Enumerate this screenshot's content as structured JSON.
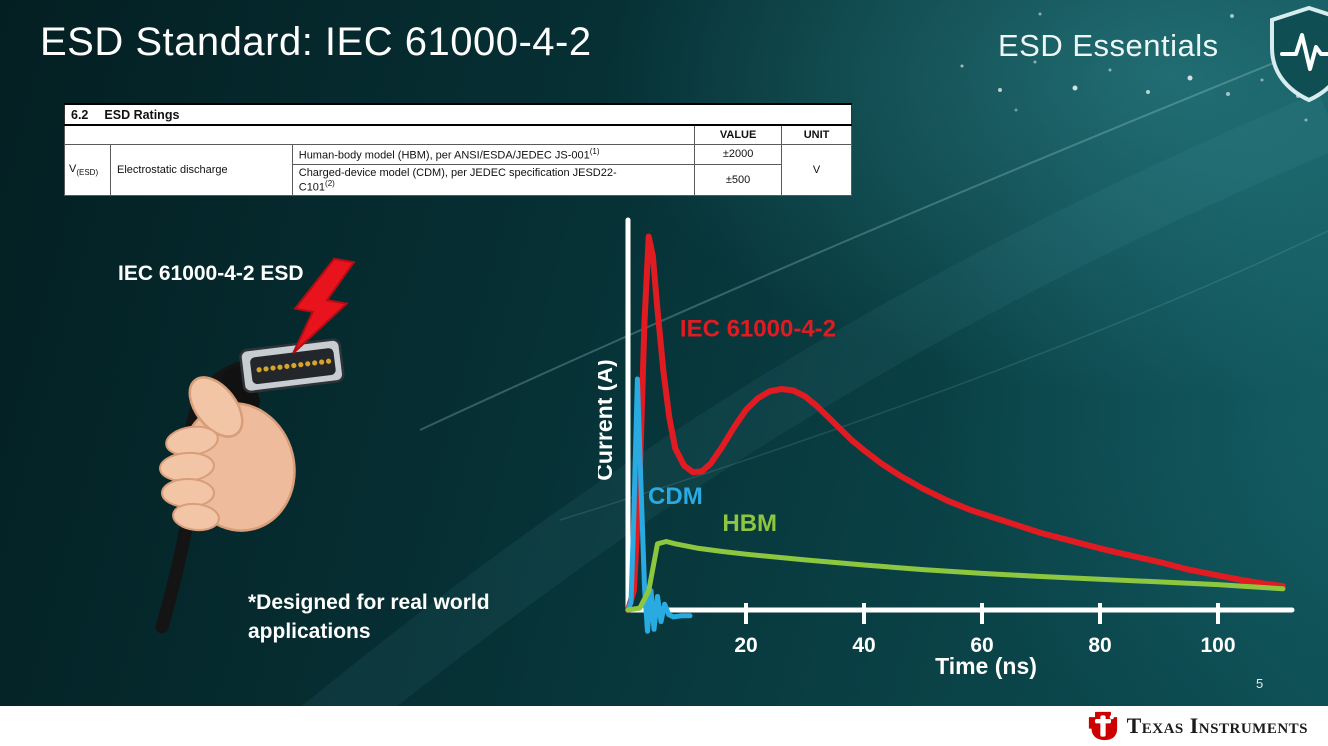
{
  "slide": {
    "title": "ESD Standard: IEC 61000-4-2",
    "series_label": "ESD Essentials",
    "page_number": "5"
  },
  "ratings_table": {
    "section": "6.2",
    "section_title": "ESD Ratings",
    "col_value": "VALUE",
    "col_unit": "UNIT",
    "symbol_main": "V",
    "symbol_sub": "(ESD)",
    "row_name": "Electrostatic discharge",
    "rows": [
      {
        "description": "Human-body model (HBM), per ANSI/ESDA/JEDEC JS-001",
        "sup": "(1)",
        "value": "±2000"
      },
      {
        "description_line1": "Charged-device model (CDM), per JEDEC specification JESD22-",
        "description_line2": "C101",
        "sup": "(2)",
        "value": "±500"
      }
    ],
    "unit": "V"
  },
  "illustration": {
    "label": "IEC 61000-4-2 ESD",
    "footnote_line1": "*Designed for real world",
    "footnote_line2": "applications"
  },
  "chart_data": {
    "type": "line",
    "title": "",
    "xlabel": "Time (ns)",
    "ylabel": "Current (A)",
    "x_ticks": [
      20,
      40,
      60,
      80,
      100
    ],
    "xlim": [
      0,
      112
    ],
    "ylim": [
      -1,
      10
    ],
    "grid": false,
    "legend_position": "inline-labels",
    "series": [
      {
        "id": "iec",
        "name": "IEC 61000-4-2",
        "color": "#e11b22",
        "label_at": [
          8.8,
          7.1
        ],
        "points": [
          [
            0,
            0
          ],
          [
            1,
            0.5
          ],
          [
            2,
            3.5
          ],
          [
            2.8,
            7.5
          ],
          [
            3.5,
            9.7
          ],
          [
            4.2,
            9.2
          ],
          [
            5,
            7.8
          ],
          [
            6,
            6.2
          ],
          [
            7,
            5.0
          ],
          [
            8,
            4.2
          ],
          [
            9.5,
            3.75
          ],
          [
            11,
            3.58
          ],
          [
            12.5,
            3.6
          ],
          [
            14,
            3.8
          ],
          [
            16,
            4.25
          ],
          [
            18,
            4.75
          ],
          [
            20,
            5.2
          ],
          [
            22,
            5.5
          ],
          [
            24,
            5.68
          ],
          [
            26,
            5.74
          ],
          [
            28,
            5.7
          ],
          [
            30,
            5.55
          ],
          [
            32,
            5.3
          ],
          [
            34,
            5.0
          ],
          [
            36,
            4.7
          ],
          [
            38,
            4.4
          ],
          [
            40,
            4.15
          ],
          [
            43,
            3.8
          ],
          [
            46,
            3.5
          ],
          [
            50,
            3.15
          ],
          [
            54,
            2.85
          ],
          [
            58,
            2.6
          ],
          [
            62,
            2.4
          ],
          [
            66,
            2.2
          ],
          [
            70,
            2.0
          ],
          [
            75,
            1.8
          ],
          [
            80,
            1.6
          ],
          [
            85,
            1.42
          ],
          [
            90,
            1.25
          ],
          [
            95,
            1.05
          ],
          [
            100,
            0.9
          ],
          [
            104,
            0.78
          ],
          [
            108,
            0.68
          ],
          [
            111,
            0.62
          ]
        ]
      },
      {
        "id": "cdm",
        "name": "CDM",
        "color": "#29abe2",
        "label_at": [
          3.4,
          2.75
        ],
        "points": [
          [
            0,
            0
          ],
          [
            0.5,
            0.2
          ],
          [
            1,
            2.5
          ],
          [
            1.6,
            6.0
          ],
          [
            2.2,
            3.2
          ],
          [
            2.8,
            0.6
          ],
          [
            3.3,
            -0.55
          ],
          [
            3.9,
            0.5
          ],
          [
            4.4,
            -0.5
          ],
          [
            5,
            0.35
          ],
          [
            5.6,
            -0.3
          ],
          [
            6.2,
            0.15
          ],
          [
            6.9,
            -0.12
          ],
          [
            7.7,
            -0.18
          ],
          [
            9,
            -0.15
          ],
          [
            10.5,
            -0.15
          ]
        ]
      },
      {
        "id": "hbm",
        "name": "HBM",
        "color": "#8dc63f",
        "label_at": [
          16,
          2.05
        ],
        "points": [
          [
            0,
            0
          ],
          [
            2,
            0.05
          ],
          [
            3.5,
            0.5
          ],
          [
            5,
            1.72
          ],
          [
            6.5,
            1.78
          ],
          [
            8,
            1.72
          ],
          [
            12,
            1.6
          ],
          [
            16,
            1.52
          ],
          [
            20,
            1.45
          ],
          [
            30,
            1.3
          ],
          [
            40,
            1.17
          ],
          [
            50,
            1.05
          ],
          [
            60,
            0.95
          ],
          [
            70,
            0.87
          ],
          [
            80,
            0.8
          ],
          [
            90,
            0.73
          ],
          [
            100,
            0.66
          ],
          [
            106,
            0.6
          ],
          [
            111,
            0.55
          ]
        ]
      }
    ]
  },
  "footer": {
    "brand": "Texas Instruments"
  },
  "colors": {
    "background_teal": "#0a4348",
    "series_red": "#e11b22",
    "series_cyan": "#29abe2",
    "series_green": "#8dc63f",
    "bolt_red": "#e8131d",
    "ti_red": "#cc0000",
    "footer_bg": "#ffffff"
  }
}
